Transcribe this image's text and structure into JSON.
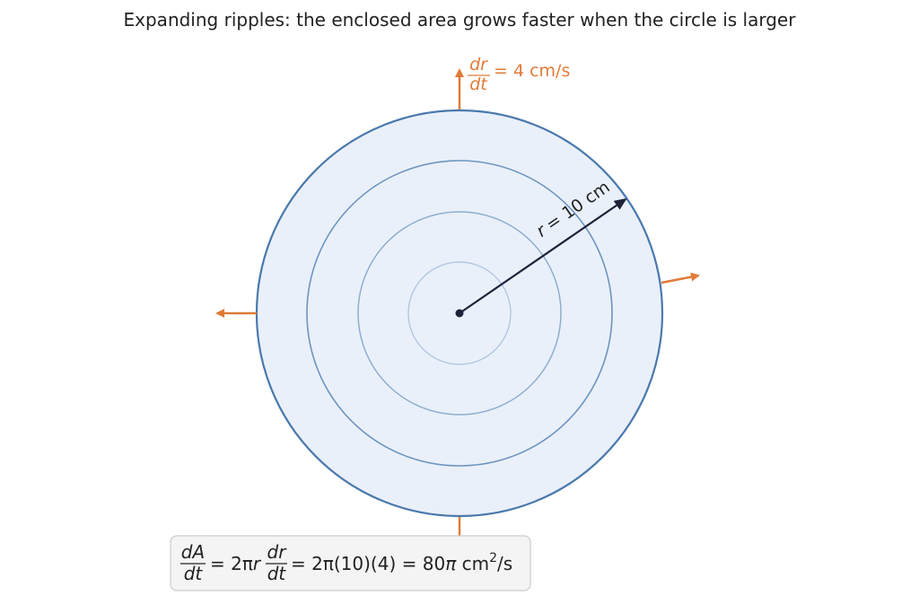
{
  "title": "Expanding ripples: the enclosed area grows faster when the circle is larger",
  "rate_label": {
    "numerator": "dr",
    "denominator": "dt",
    "text": "= 4 cm/s"
  },
  "radius_label": {
    "variable": "r",
    "text": "= 10 cm"
  },
  "formula": {
    "lhs_numerator": "dA",
    "lhs_denominator": "dt",
    "part1": "= 2π",
    "part1_var": "r",
    "rhs_numerator": "dr",
    "rhs_denominator": "dt",
    "part2": "= 2π(10)(4) = 80",
    "part2_var": "π",
    "part3": " cm",
    "exponent": "2",
    "part4": "/s"
  }
}
